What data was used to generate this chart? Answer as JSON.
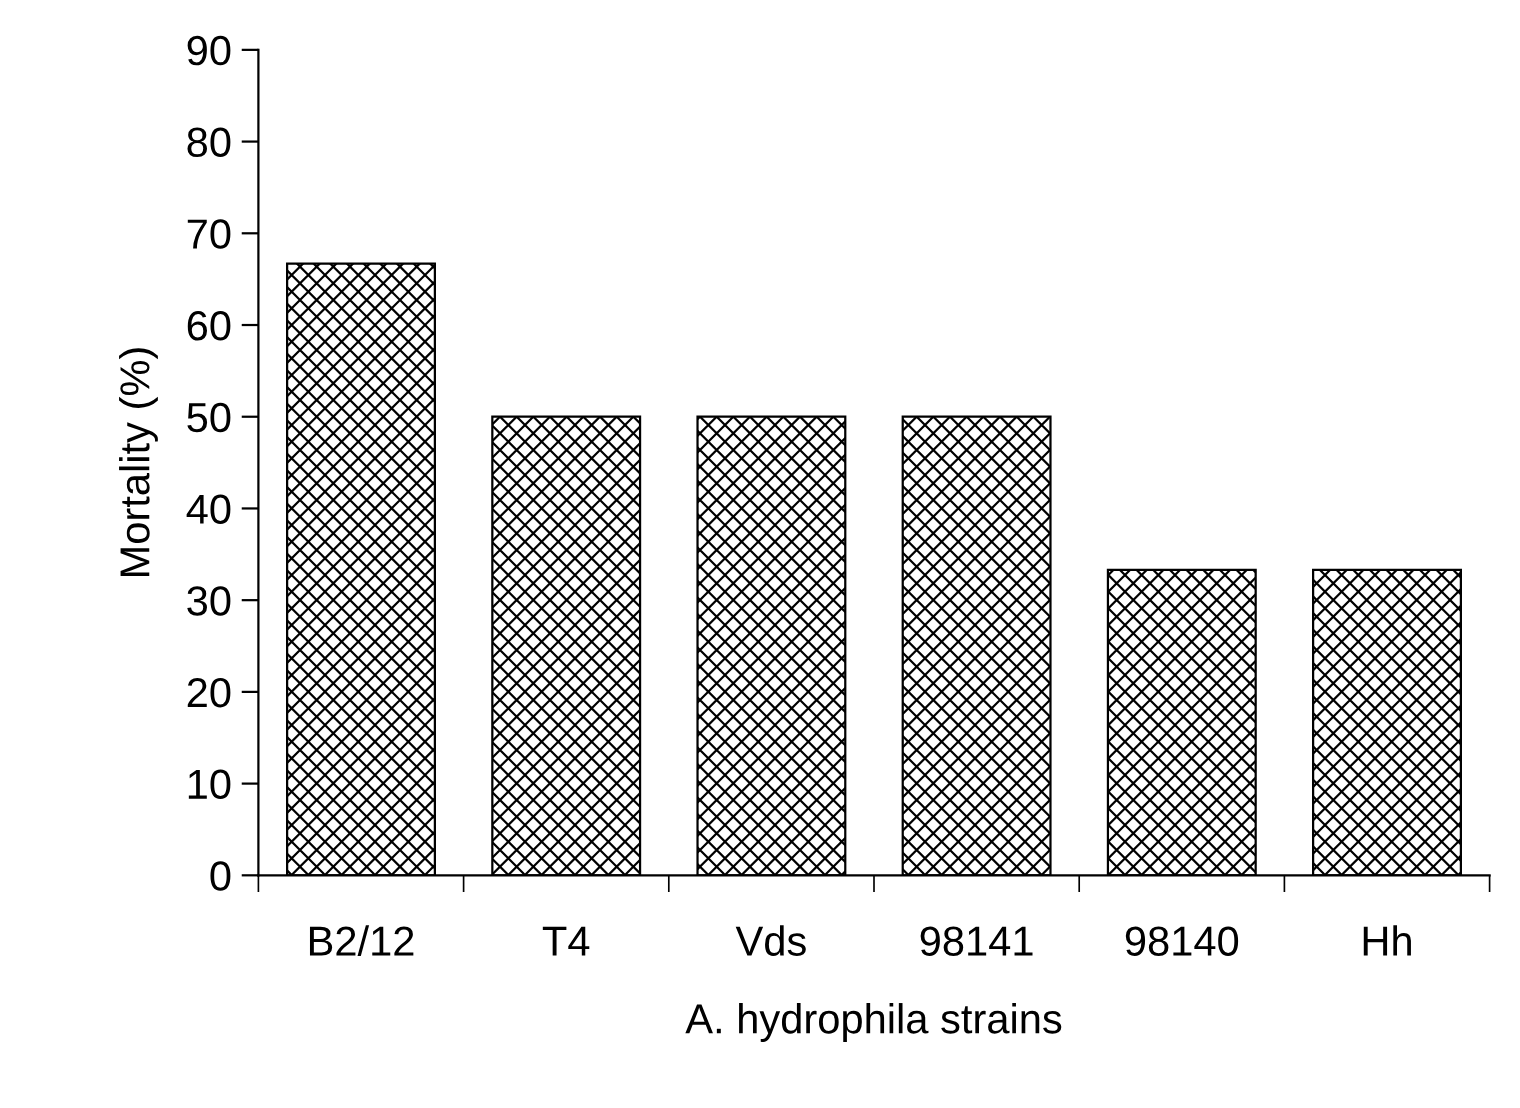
{
  "chart_data": {
    "type": "bar",
    "ylabel": "Mortality (%)",
    "xlabel": "A. hydrophila strains",
    "categories": [
      "B2/12",
      "T4",
      "Vds",
      "98141",
      "98140",
      "Hh"
    ],
    "values": [
      66.7,
      50,
      50,
      50,
      33.3,
      33.3
    ],
    "color": "#000000",
    "ylim": [
      0,
      90
    ],
    "yticks": [
      0,
      10,
      20,
      30,
      40,
      50,
      60,
      70,
      80,
      90
    ],
    "grid": false,
    "legend": false
  }
}
